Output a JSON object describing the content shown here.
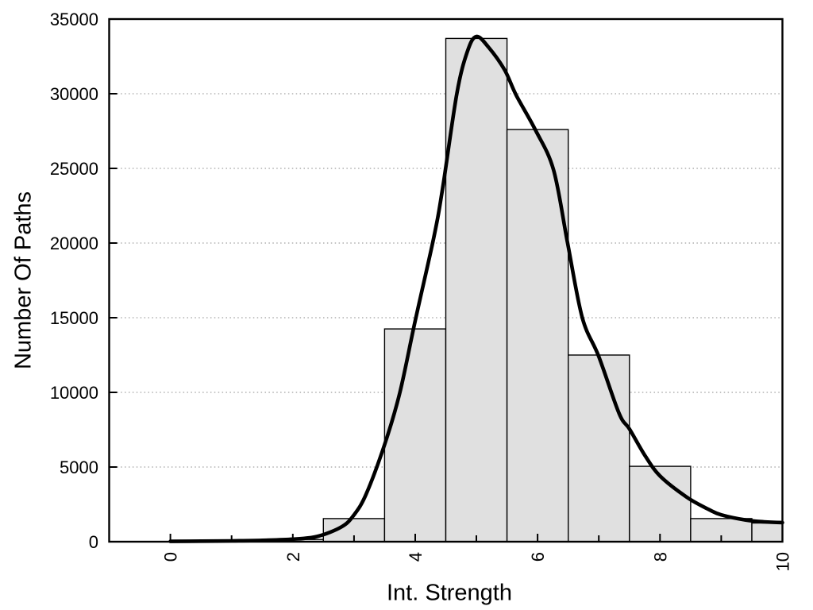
{
  "chart_data": {
    "type": "bar",
    "subtype": "histogram-with-density-curve",
    "title": "",
    "xlabel": "Int. Strength",
    "ylabel": "Number Of Paths",
    "xlim": [
      -1,
      10
    ],
    "ylim": [
      0,
      35000
    ],
    "xticks_major": [
      0,
      2,
      4,
      6,
      8,
      10
    ],
    "xticks_minor": [
      1,
      3,
      5,
      7,
      9
    ],
    "yticks": [
      0,
      5000,
      10000,
      15000,
      20000,
      25000,
      30000,
      35000
    ],
    "grid": "horizontal-dotted",
    "legend": "none",
    "bin_width": 1,
    "categories": [
      2,
      3,
      4,
      5,
      6,
      7,
      8,
      9,
      10
    ],
    "values": [
      150,
      1550,
      14250,
      33700,
      27600,
      12500,
      5050,
      1550,
      1250
    ],
    "bins": [
      {
        "center": 2,
        "count": 150
      },
      {
        "center": 3,
        "count": 1550
      },
      {
        "center": 4,
        "count": 14250
      },
      {
        "center": 5,
        "count": 33700
      },
      {
        "center": 6,
        "count": 27600
      },
      {
        "center": 7,
        "count": 12500
      },
      {
        "center": 8,
        "count": 5050
      },
      {
        "center": 9,
        "count": 1550
      },
      {
        "center": 10,
        "count": 1250
      }
    ],
    "curve_points": [
      [
        0,
        20
      ],
      [
        0.5,
        35
      ],
      [
        1,
        55
      ],
      [
        1.5,
        90
      ],
      [
        2,
        170
      ],
      [
        2.4,
        350
      ],
      [
        2.8,
        1000
      ],
      [
        3,
        1800
      ],
      [
        3.2,
        3200
      ],
      [
        3.5,
        6500
      ],
      [
        3.75,
        10000
      ],
      [
        4,
        14800
      ],
      [
        4.3,
        20300
      ],
      [
        4.45,
        23700
      ],
      [
        4.68,
        30000
      ],
      [
        4.85,
        32800
      ],
      [
        5,
        33830
      ],
      [
        5.2,
        33100
      ],
      [
        5.46,
        31600
      ],
      [
        5.65,
        29900
      ],
      [
        5.96,
        27600
      ],
      [
        6.26,
        24900
      ],
      [
        6.49,
        20000
      ],
      [
        6.73,
        15000
      ],
      [
        7,
        12400
      ],
      [
        7.33,
        8600
      ],
      [
        7.5,
        7550
      ],
      [
        7.75,
        5800
      ],
      [
        8,
        4400
      ],
      [
        8.43,
        3000
      ],
      [
        8.8,
        2150
      ],
      [
        9,
        1800
      ],
      [
        9.4,
        1450
      ],
      [
        9.7,
        1330
      ],
      [
        10,
        1280
      ]
    ],
    "colors": {
      "background": "#ffffff",
      "bar_fill": "#e0e0e0",
      "bar_stroke": "#000000",
      "curve": "#000000",
      "grid": "#a0a0a0",
      "axis": "#000000",
      "text": "#000000"
    }
  }
}
